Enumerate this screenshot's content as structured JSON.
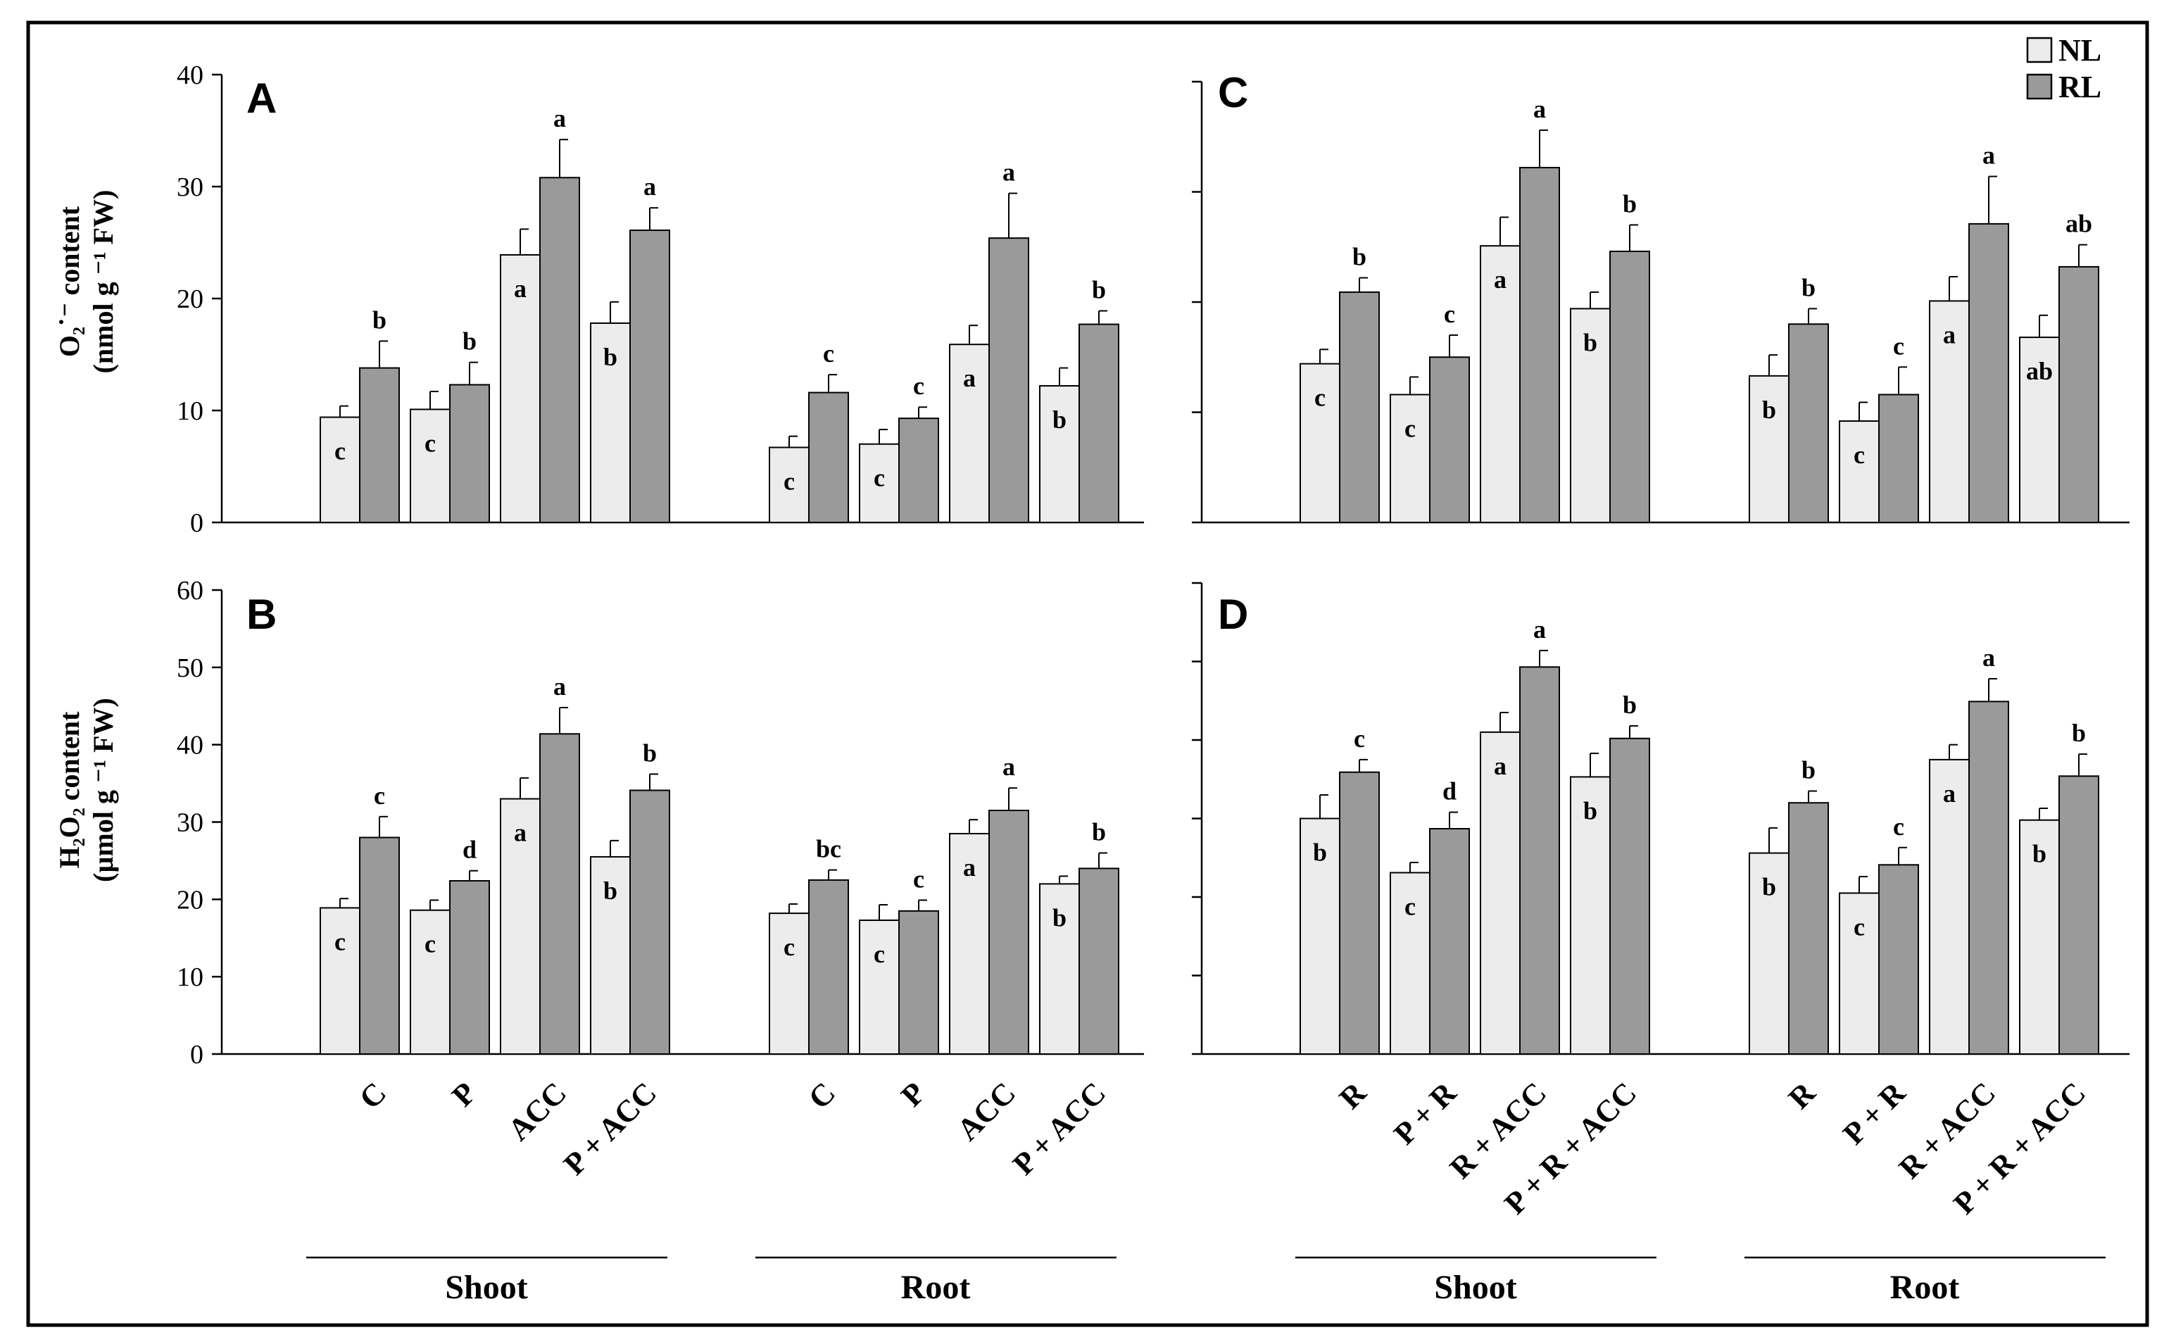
{
  "legend": {
    "nl_label": "NL",
    "rl_label": "RL"
  },
  "colors": {
    "NL": "#ececec",
    "RL": "#9a9a9a",
    "sig_dark": "#000000",
    "sig_grey": "#555555"
  },
  "labels": {
    "ylabel_A_line1": "O₂˙⁻ content",
    "ylabel_A_line2": "(nmol g ⁻¹ FW)",
    "ylabel_B_line1": "H₂O₂ content",
    "ylabel_B_line2": "(µmol g ⁻¹ FW)",
    "shoot": "Shoot",
    "root": "Root"
  },
  "chart_data": [
    {
      "panel": "A",
      "type": "bar",
      "ylim": [
        0,
        40
      ],
      "ticks": [
        0,
        10,
        20,
        30,
        40
      ],
      "ylabel": "O₂˙⁻ content (nmol g ⁻¹ FW)",
      "groups": [
        {
          "name": "Shoot",
          "categories": [
            {
              "label": "C",
              "NL": 9.4,
              "NL_err": 1.0,
              "NL_sig": "c",
              "RL": 13.8,
              "RL_err": 2.4,
              "RL_sig": "b"
            },
            {
              "label": "P",
              "NL": 10.1,
              "NL_err": 1.6,
              "NL_sig": "c",
              "RL": 12.3,
              "RL_err": 2.0,
              "RL_sig": "b"
            },
            {
              "label": "ACC",
              "NL": 23.9,
              "NL_err": 2.3,
              "NL_sig": "a",
              "RL": 30.8,
              "RL_err": 3.4,
              "RL_sig": "a"
            },
            {
              "label": "P + ACC",
              "NL": 17.8,
              "NL_err": 1.9,
              "NL_sig": "b",
              "RL": 26.1,
              "RL_err": 2.0,
              "RL_sig": "a"
            }
          ]
        },
        {
          "name": "Root",
          "categories": [
            {
              "label": "C",
              "NL": 6.7,
              "NL_err": 1.0,
              "NL_sig": "c",
              "RL": 11.6,
              "RL_err": 1.6,
              "RL_sig": "c"
            },
            {
              "label": "P",
              "NL": 7.0,
              "NL_err": 1.3,
              "NL_sig": "c",
              "RL": 9.3,
              "RL_err": 1.0,
              "RL_sig": "c"
            },
            {
              "label": "ACC",
              "NL": 15.9,
              "NL_err": 1.7,
              "NL_sig": "a",
              "RL": 25.4,
              "RL_err": 4.0,
              "RL_sig": "a"
            },
            {
              "label": "P + ACC",
              "NL": 12.2,
              "NL_err": 1.6,
              "NL_sig": "b",
              "RL": 17.7,
              "RL_err": 1.2,
              "RL_sig": "b"
            }
          ]
        }
      ]
    },
    {
      "panel": "B",
      "type": "bar",
      "ylim": [
        0,
        60
      ],
      "ticks": [
        0,
        10,
        20,
        30,
        40,
        50,
        60
      ],
      "ylabel": "H₂O₂ content (µmol g ⁻¹ FW)",
      "groups": [
        {
          "name": "Shoot",
          "categories": [
            {
              "label": "C",
              "NL": 18.9,
              "NL_err": 1.2,
              "NL_sig": "c",
              "RL": 28.0,
              "RL_err": 2.7,
              "RL_sig": "c"
            },
            {
              "label": "P",
              "NL": 18.6,
              "NL_err": 1.3,
              "NL_sig": "c",
              "RL": 22.4,
              "RL_err": 1.3,
              "RL_sig": "d"
            },
            {
              "label": "ACC",
              "NL": 33.0,
              "NL_err": 2.7,
              "NL_sig": "a",
              "RL": 41.4,
              "RL_err": 3.4,
              "RL_sig": "a"
            },
            {
              "label": "P + ACC",
              "NL": 25.5,
              "NL_err": 2.1,
              "NL_sig": "b",
              "RL": 34.1,
              "RL_err": 2.1,
              "RL_sig": "b"
            }
          ]
        },
        {
          "name": "Root",
          "categories": [
            {
              "label": "C",
              "NL": 18.2,
              "NL_err": 1.2,
              "NL_sig": "c",
              "RL": 22.5,
              "RL_err": 1.3,
              "RL_sig": "bc"
            },
            {
              "label": "P",
              "NL": 17.3,
              "NL_err": 2.0,
              "NL_sig": "c",
              "RL": 18.5,
              "RL_err": 1.4,
              "RL_sig": "c"
            },
            {
              "label": "ACC",
              "NL": 28.5,
              "NL_err": 1.8,
              "NL_sig": "a",
              "RL": 31.5,
              "RL_err": 2.9,
              "RL_sig": "a"
            },
            {
              "label": "P + ACC",
              "NL": 22.0,
              "NL_err": 1.0,
              "NL_sig": "b",
              "RL": 24.0,
              "RL_err": 2.0,
              "RL_sig": "b"
            }
          ]
        }
      ]
    },
    {
      "panel": "C",
      "type": "bar",
      "ylim": [
        0,
        40
      ],
      "ticks": [
        0,
        10,
        20,
        30,
        40
      ],
      "groups": [
        {
          "name": "Shoot",
          "categories": [
            {
              "label": "R",
              "NL": 14.4,
              "NL_err": 1.3,
              "NL_sig": "c",
              "RL": 20.9,
              "RL_err": 1.3,
              "RL_sig": "b"
            },
            {
              "label": "P + R",
              "NL": 11.6,
              "NL_err": 1.6,
              "NL_sig": "c",
              "RL": 15.0,
              "RL_err": 2.0,
              "RL_sig": "c"
            },
            {
              "label": "R + ACC",
              "NL": 25.1,
              "NL_err": 2.6,
              "NL_sig": "a",
              "RL": 32.2,
              "RL_err": 3.4,
              "RL_sig": "a"
            },
            {
              "label": "P + R + ACC",
              "NL": 19.4,
              "NL_err": 1.5,
              "NL_sig": "b",
              "RL": 24.6,
              "RL_err": 2.4,
              "RL_sig": "b"
            }
          ]
        },
        {
          "name": "Root",
          "categories": [
            {
              "label": "R",
              "NL": 13.3,
              "NL_err": 1.9,
              "NL_sig": "b",
              "RL": 18.0,
              "RL_err": 1.4,
              "RL_sig": "b"
            },
            {
              "label": "P + R",
              "NL": 9.2,
              "NL_err": 1.7,
              "NL_sig": "c",
              "RL": 11.6,
              "RL_err": 2.5,
              "RL_sig": "c"
            },
            {
              "label": "R + ACC",
              "NL": 20.1,
              "NL_err": 2.2,
              "NL_sig": "a",
              "RL": 27.1,
              "RL_err": 4.3,
              "RL_sig": "a"
            },
            {
              "label": "P + R + ACC",
              "NL": 16.8,
              "NL_err": 2.0,
              "NL_sig": "ab",
              "RL": 23.2,
              "RL_err": 2.0,
              "RL_sig": "ab"
            }
          ]
        }
      ]
    },
    {
      "panel": "D",
      "type": "bar",
      "ylim": [
        0,
        60
      ],
      "ticks": [
        0,
        10,
        20,
        30,
        40,
        50,
        60
      ],
      "groups": [
        {
          "name": "Shoot",
          "categories": [
            {
              "label": "R",
              "NL": 30.0,
              "NL_err": 3.0,
              "NL_sig": "b",
              "RL": 35.9,
              "RL_err": 1.6,
              "RL_sig": "c"
            },
            {
              "label": "P + R",
              "NL": 23.1,
              "NL_err": 1.3,
              "NL_sig": "c",
              "RL": 28.7,
              "RL_err": 2.1,
              "RL_sig": "d"
            },
            {
              "label": "R + ACC",
              "NL": 41.0,
              "NL_err": 2.5,
              "NL_sig": "a",
              "RL": 49.3,
              "RL_err": 2.1,
              "RL_sig": "a"
            },
            {
              "label": "P + R + ACC",
              "NL": 35.3,
              "NL_err": 3.0,
              "NL_sig": "b",
              "RL": 40.2,
              "RL_err": 1.6,
              "RL_sig": "b"
            }
          ]
        },
        {
          "name": "Root",
          "categories": [
            {
              "label": "R",
              "NL": 25.6,
              "NL_err": 3.2,
              "NL_sig": "b",
              "RL": 32.0,
              "RL_err": 1.5,
              "RL_sig": "b"
            },
            {
              "label": "P + R",
              "NL": 20.5,
              "NL_err": 2.1,
              "NL_sig": "c",
              "RL": 24.1,
              "RL_err": 2.2,
              "RL_sig": "c"
            },
            {
              "label": "R + ACC",
              "NL": 37.5,
              "NL_err": 1.9,
              "NL_sig": "a",
              "RL": 44.9,
              "RL_err": 2.9,
              "RL_sig": "a"
            },
            {
              "label": "P + R + ACC",
              "NL": 29.8,
              "NL_err": 1.5,
              "NL_sig": "b",
              "RL": 35.4,
              "RL_err": 2.8,
              "RL_sig": "b"
            }
          ]
        }
      ]
    }
  ]
}
